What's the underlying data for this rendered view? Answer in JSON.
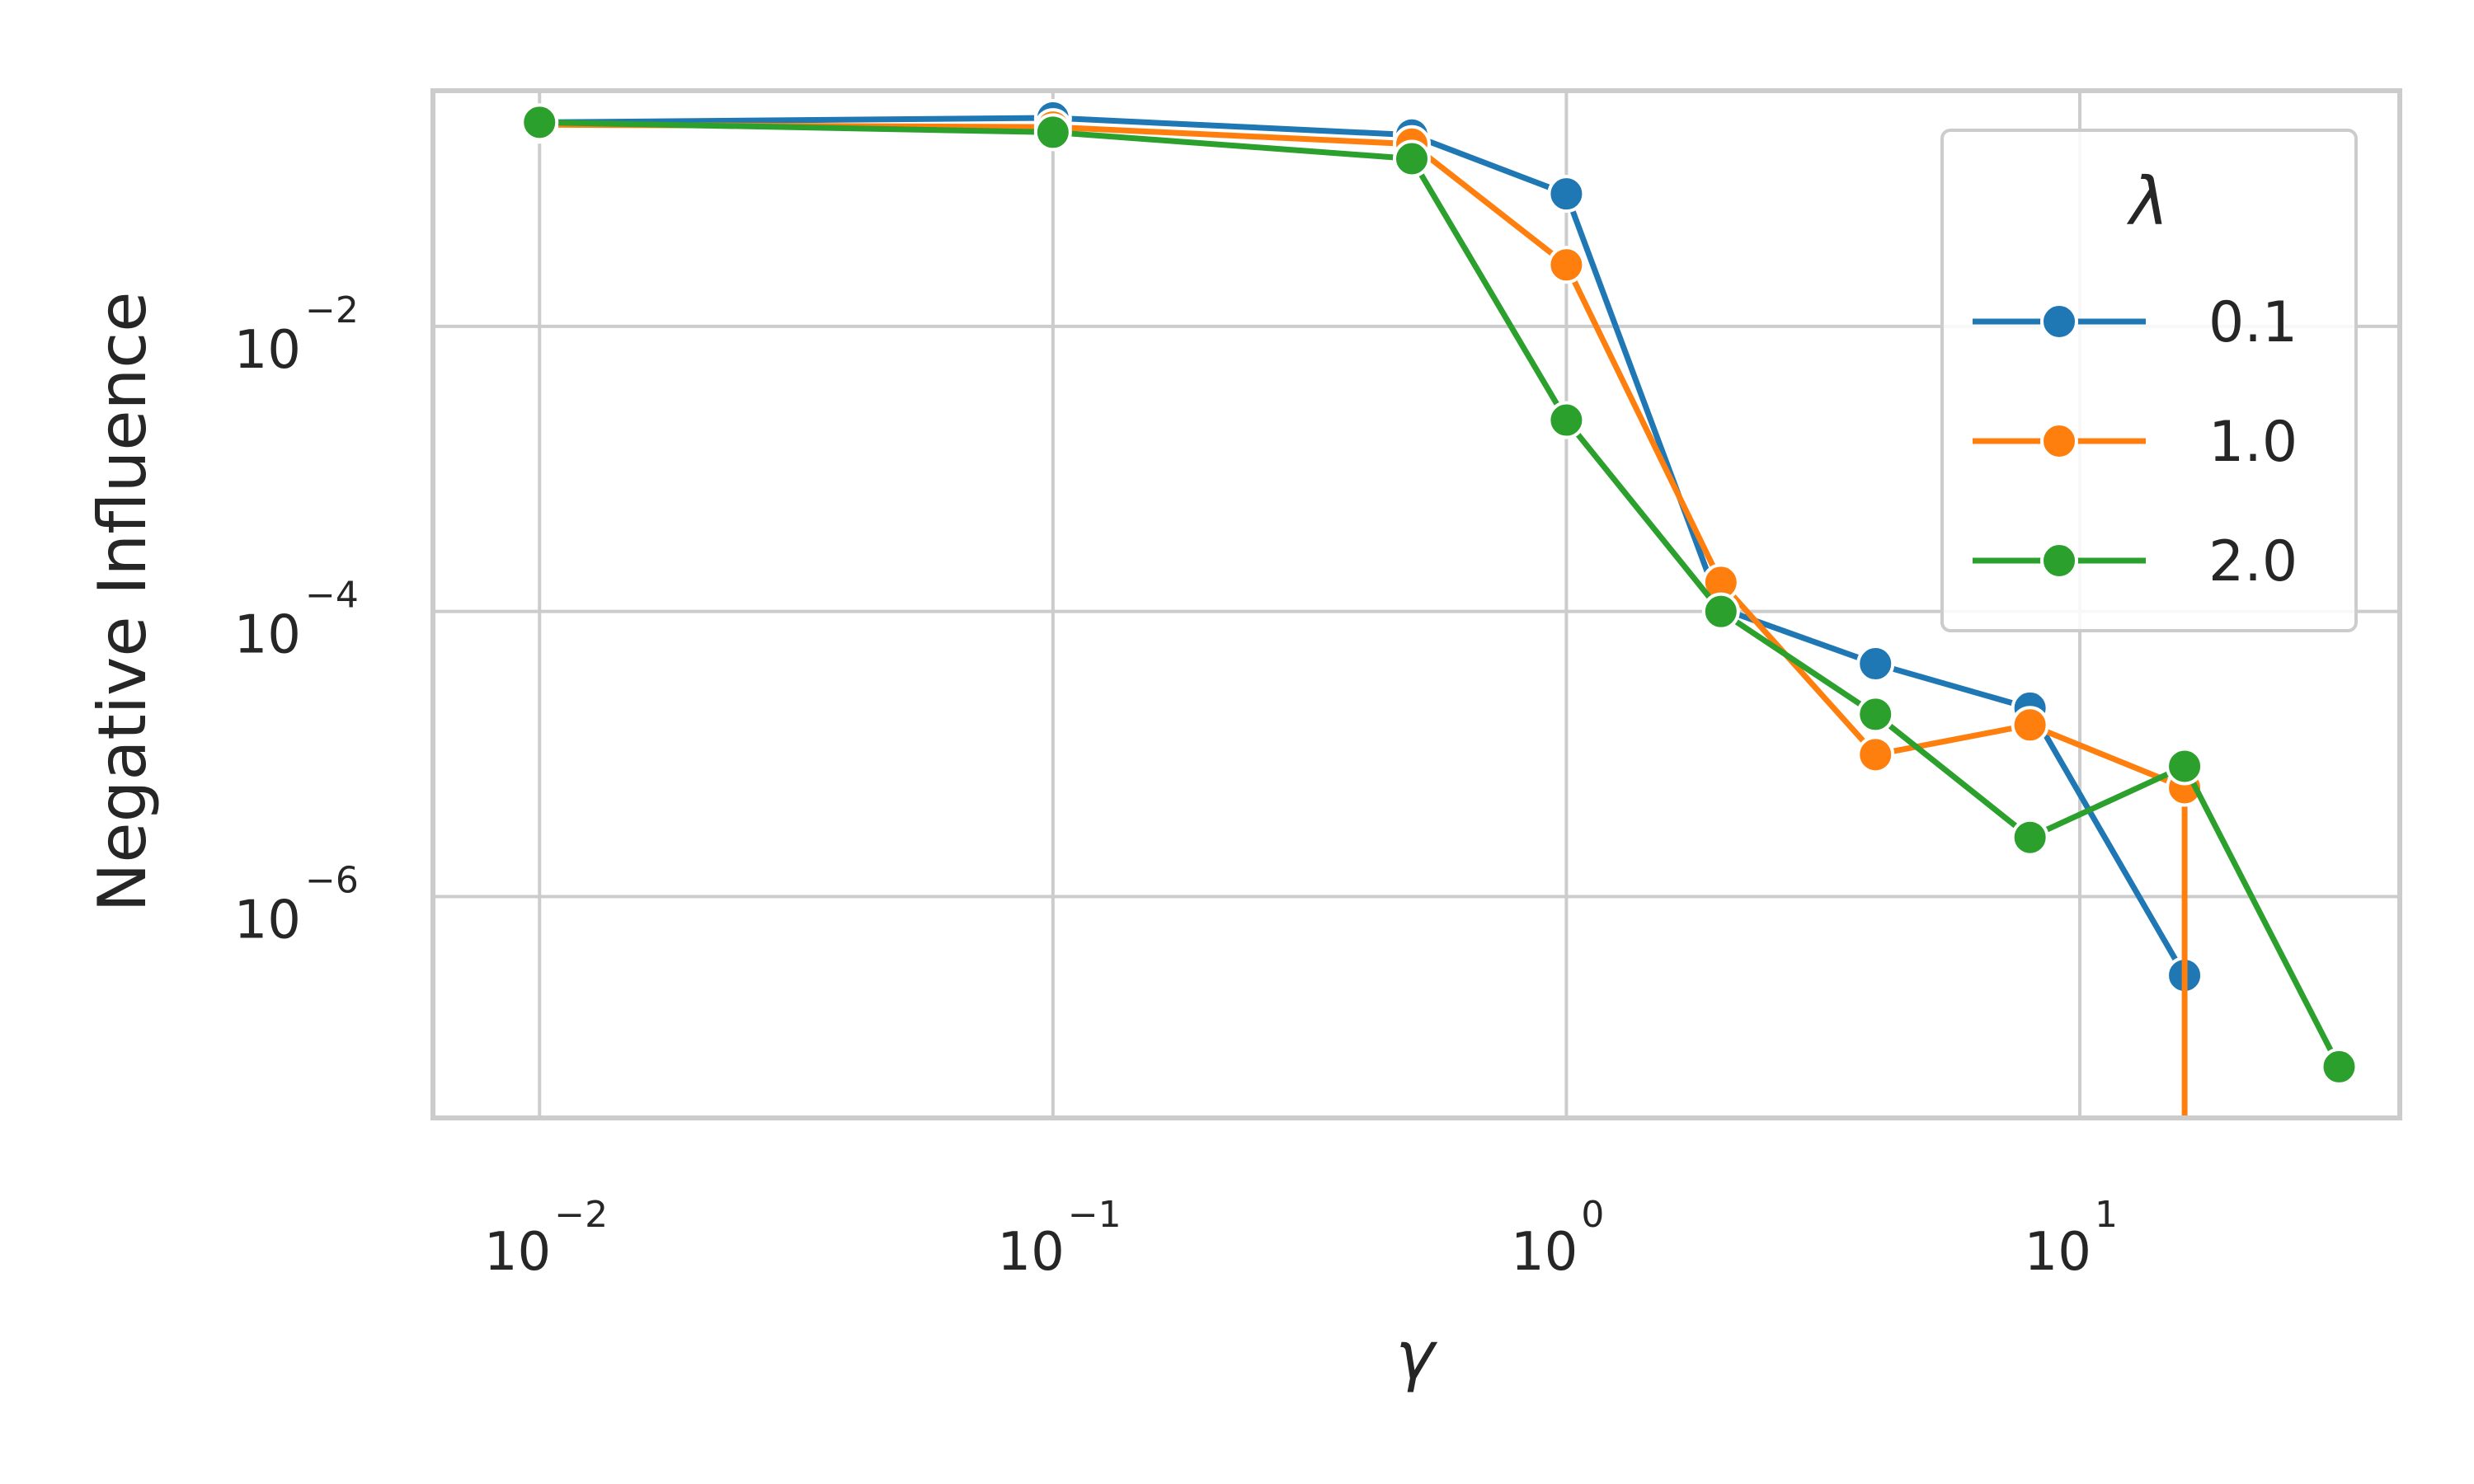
{
  "chart_data": {
    "type": "line",
    "xlabel": "γ",
    "ylabel": "Negative Influence",
    "xscale": "log",
    "yscale": "log",
    "xlim": [
      0.0062,
      42
    ],
    "ylim": [
      2.8e-08,
      0.45
    ],
    "x_ticks": [
      {
        "value": 0.01,
        "base": "10",
        "exp": "−2"
      },
      {
        "value": 0.1,
        "base": "10",
        "exp": "−1"
      },
      {
        "value": 1,
        "base": "10",
        "exp": "0"
      },
      {
        "value": 10,
        "base": "10",
        "exp": "1"
      }
    ],
    "y_ticks": [
      {
        "value": 0.01,
        "base": "10",
        "exp": "−2"
      },
      {
        "value": 0.0001,
        "base": "10",
        "exp": "−4"
      },
      {
        "value": 1e-06,
        "base": "10",
        "exp": "−6"
      }
    ],
    "grid": true,
    "legend": {
      "title": "λ",
      "placement": "top-right",
      "entries": [
        "0.1",
        "1.0",
        "2.0"
      ]
    },
    "series": [
      {
        "name": "0.1",
        "color": "#1f77b4",
        "points": [
          {
            "x": 0.01,
            "y": 0.27
          },
          {
            "x": 0.1,
            "y": 0.29
          },
          {
            "x": 0.5,
            "y": 0.22
          },
          {
            "x": 1,
            "y": 0.085
          },
          {
            "x": 2,
            "y": 0.000105
          },
          {
            "x": 4,
            "y": 4.3e-05
          },
          {
            "x": 8,
            "y": 2.1e-05
          },
          {
            "x": 16,
            "y": 2.8e-07
          }
        ]
      },
      {
        "name": "1.0",
        "color": "#ff7f0e",
        "points": [
          {
            "x": 0.01,
            "y": 0.26
          },
          {
            "x": 0.1,
            "y": 0.25
          },
          {
            "x": 0.5,
            "y": 0.19
          },
          {
            "x": 1,
            "y": 0.027
          },
          {
            "x": 2,
            "y": 0.00016
          },
          {
            "x": 4,
            "y": 9.9e-06
          },
          {
            "x": 8,
            "y": 1.6e-05
          },
          {
            "x": 16,
            "y": 5.8e-06
          },
          {
            "x": 16,
            "y": 2.8e-08
          }
        ]
      },
      {
        "name": "2.0",
        "color": "#2ca02c",
        "points": [
          {
            "x": 0.01,
            "y": 0.27
          },
          {
            "x": 0.1,
            "y": 0.23
          },
          {
            "x": 0.5,
            "y": 0.15
          },
          {
            "x": 1,
            "y": 0.0022
          },
          {
            "x": 2,
            "y": 0.0001
          },
          {
            "x": 4,
            "y": 1.9e-05
          },
          {
            "x": 8,
            "y": 2.6e-06
          },
          {
            "x": 16,
            "y": 8.2e-06
          },
          {
            "x": 32,
            "y": 6.4e-08
          }
        ]
      }
    ]
  }
}
